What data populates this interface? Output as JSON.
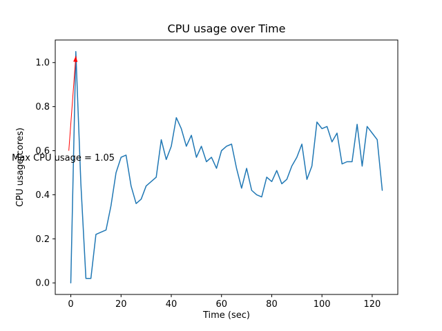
{
  "chart_data": {
    "type": "line",
    "title": "CPU usage over Time",
    "xlabel": "Time (sec)",
    "ylabel": "CPU usage(cores)",
    "xlim": [
      -6.2,
      130.2
    ],
    "ylim": [
      -0.0525,
      1.1025
    ],
    "xtick_values": [
      0,
      20,
      40,
      60,
      80,
      100,
      120
    ],
    "xtick_labels": [
      "0",
      "20",
      "40",
      "60",
      "80",
      "100",
      "120"
    ],
    "ytick_values": [
      0.0,
      0.2,
      0.4,
      0.6,
      0.8,
      1.0
    ],
    "ytick_labels": [
      "0.0",
      "0.2",
      "0.4",
      "0.6",
      "0.8",
      "1.0"
    ],
    "grid": false,
    "legend": null,
    "line_color": "#1f77b4",
    "axes_color": "#000000",
    "x": [
      0,
      2,
      4,
      6,
      8,
      10,
      12,
      14,
      16,
      18,
      20,
      22,
      24,
      26,
      28,
      30,
      32,
      34,
      36,
      38,
      40,
      42,
      44,
      46,
      48,
      50,
      52,
      54,
      56,
      58,
      60,
      62,
      64,
      66,
      68,
      70,
      72,
      74,
      76,
      78,
      80,
      82,
      84,
      86,
      88,
      90,
      92,
      94,
      96,
      98,
      100,
      102,
      104,
      106,
      108,
      110,
      112,
      114,
      116,
      118,
      120,
      122,
      124
    ],
    "y": [
      0.0,
      1.05,
      0.45,
      0.02,
      0.02,
      0.22,
      0.23,
      0.24,
      0.35,
      0.5,
      0.57,
      0.58,
      0.44,
      0.36,
      0.38,
      0.44,
      0.46,
      0.48,
      0.65,
      0.56,
      0.62,
      0.75,
      0.7,
      0.62,
      0.67,
      0.57,
      0.62,
      0.55,
      0.57,
      0.52,
      0.6,
      0.62,
      0.63,
      0.52,
      0.43,
      0.52,
      0.42,
      0.4,
      0.39,
      0.48,
      0.46,
      0.51,
      0.45,
      0.47,
      0.53,
      0.57,
      0.63,
      0.47,
      0.53,
      0.73,
      0.7,
      0.71,
      0.64,
      0.68,
      0.54,
      0.55,
      0.55,
      0.72,
      0.53,
      0.71,
      0.68,
      0.65,
      0.42
    ],
    "max_value": 1.05,
    "annotation": {
      "text": "Max CPU usage = 1.05",
      "color": "red",
      "text_x": -23.5,
      "text_y": 0.555,
      "arrow": {
        "x1": -0.8,
        "y1": 0.6,
        "x2": 2.0,
        "y2": 1.03
      }
    }
  }
}
